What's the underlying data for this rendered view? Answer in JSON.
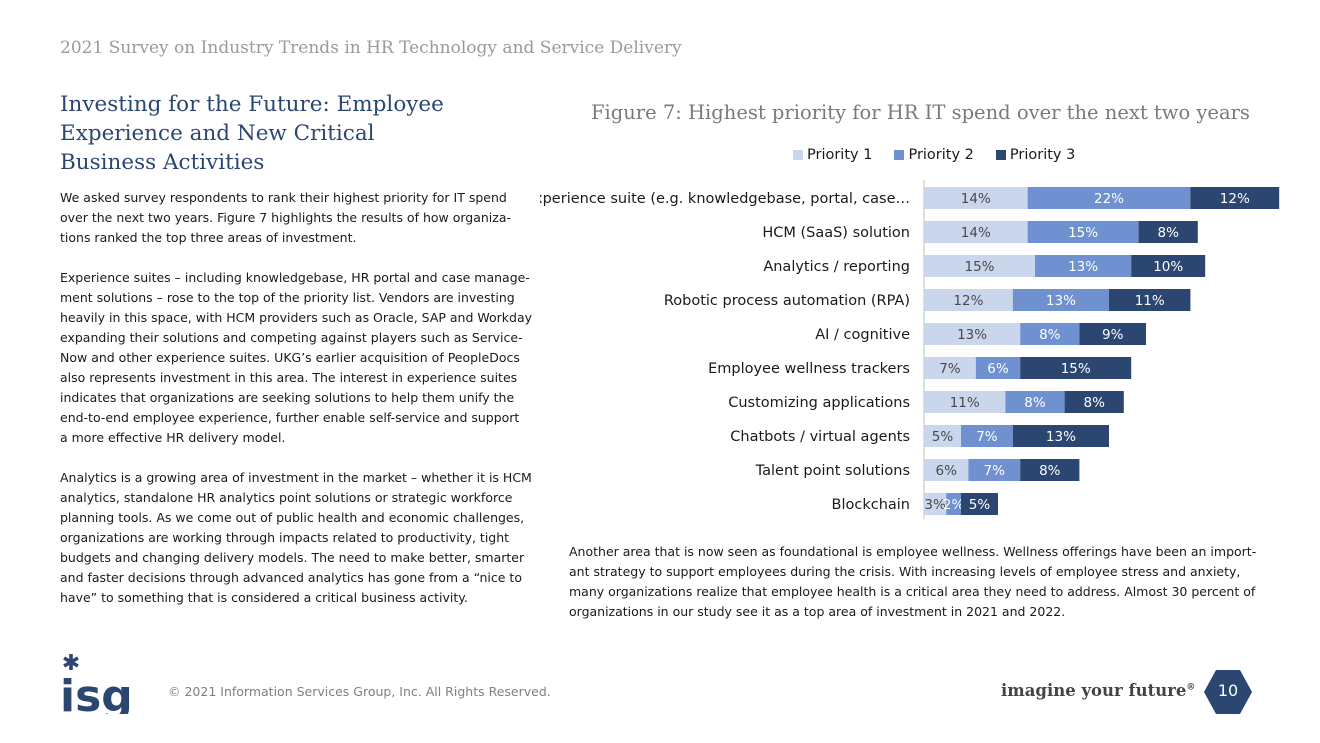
{
  "header": {
    "running_title": "2021 Survey on Industry Trends in HR Technology and Service Delivery"
  },
  "section": {
    "title_lines": [
      "Investing for the Future: Employee",
      "Experience and New Critical",
      "Business Activities"
    ]
  },
  "left_paragraphs": [
    [
      "We asked survey respondents to rank their highest priority for IT spend",
      "over the next two years. Figure 7 highlights the results of how organiza-",
      "tions ranked the top three areas of investment."
    ],
    [
      "Experience suites – including knowledgebase, HR portal and case manage-",
      "ment solutions – rose to the top of the priority list. Vendors are investing",
      "heavily in this space, with HCM providers such as Oracle, SAP and Workday",
      "expanding their solutions and competing against players such as Service-",
      "Now and other experience suites. UKG’s earlier acquisition of PeopleDocs",
      "also represents investment in this area. The interest in experience suites",
      "indicates that organizations are seeking solutions to help them unify the",
      "end-to-end employee experience, further enable self-service and support",
      "a more effective HR delivery model."
    ],
    [
      "Analytics is a growing area of investment in the market – whether it is HCM",
      "analytics, standalone HR analytics point solutions or strategic workforce",
      "planning tools. As we come out of public health and economic challenges,",
      "organizations are working through impacts related to productivity, tight",
      "budgets and changing delivery models. The need to make better, smarter",
      "and faster decisions through advanced analytics has gone from a “nice to",
      "have” to something that is considered a critical business activity."
    ]
  ],
  "right_paragraph": [
    "Another area that is now seen as foundational is employee wellness. Wellness offerings have been an import-",
    "ant strategy to support employees during the crisis. With increasing levels of employee stress and anxiety,",
    "many organizations realize that employee health is a critical area they need to address. Almost 30 percent of",
    "organizations in our study see it as a top area of investment in 2021 and 2022."
  ],
  "chart_data": {
    "type": "bar",
    "orientation": "horizontal",
    "stacked": true,
    "title": "Figure 7: Highest priority for HR IT spend over the next two years",
    "categories": [
      "Experience suite (e.g. knowledgebase, portal, case…",
      "HCM (SaaS) solution",
      "Analytics / reporting",
      "Robotic process automation (RPA)",
      "AI / cognitive",
      "Employee wellness trackers",
      "Customizing applications",
      "Chatbots / virtual agents",
      "Talent point solutions",
      "Blockchain"
    ],
    "series": [
      {
        "name": "Priority 1",
        "color": "#c9d6ec",
        "values": [
          14,
          14,
          15,
          12,
          13,
          7,
          11,
          5,
          6,
          3
        ]
      },
      {
        "name": "Priority 2",
        "color": "#6f91cf",
        "values": [
          22,
          15,
          13,
          13,
          8,
          6,
          8,
          7,
          7,
          2
        ]
      },
      {
        "name": "Priority 3",
        "color": "#2c4672",
        "values": [
          12,
          8,
          10,
          11,
          9,
          15,
          8,
          13,
          8,
          5
        ]
      }
    ],
    "value_suffix": "%",
    "legend_position": "top",
    "grid": false,
    "xlim": [
      0,
      50
    ]
  },
  "footer": {
    "logo_text": "isg",
    "copyright": "© 2021 Information Services Group, Inc. All Rights Reserved.",
    "tagline": "imagine your future",
    "tagline_mark": "®",
    "page_number": "10"
  },
  "colors": {
    "accent": "#2c4672",
    "light": "#c9d6ec",
    "medium": "#6f91cf"
  }
}
